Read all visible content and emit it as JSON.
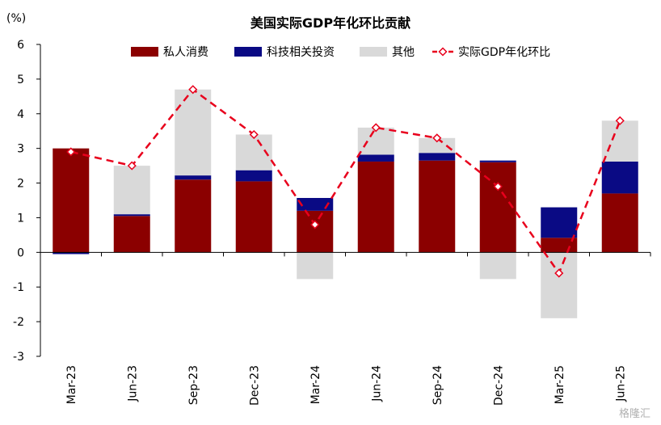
{
  "chart_data": {
    "type": "bar",
    "title": "美国实际GDP年化环比贡献",
    "ylabel": "(%)",
    "ylim": [
      -3,
      6
    ],
    "yticks": [
      -3,
      -2,
      -1,
      0,
      1,
      2,
      3,
      4,
      5,
      6
    ],
    "categories": [
      "Mar-23",
      "Jun-23",
      "Sep-23",
      "Dec-23",
      "Mar-24",
      "Jun-24",
      "Sep-24",
      "Dec-24",
      "Mar-25",
      "Jun-25"
    ],
    "series": [
      {
        "name": "私人消费",
        "kind": "bar",
        "color": "#8b0000",
        "values": [
          3.0,
          1.05,
          2.1,
          2.05,
          1.2,
          2.62,
          2.65,
          2.6,
          0.42,
          1.7
        ]
      },
      {
        "name": "科技相关投资",
        "kind": "bar",
        "color": "#0a0a84",
        "values": [
          -0.05,
          0.05,
          0.12,
          0.32,
          0.37,
          0.2,
          0.22,
          0.05,
          0.88,
          0.92
        ]
      },
      {
        "name": "其他",
        "kind": "bar",
        "color": "#d9d9d9",
        "values": [
          0.0,
          1.4,
          2.48,
          1.03,
          -0.77,
          0.78,
          0.43,
          -0.77,
          -1.9,
          1.18
        ]
      },
      {
        "name": "实际GDP年化环比",
        "kind": "line",
        "color": "#e8001c",
        "values": [
          2.9,
          2.5,
          4.7,
          3.4,
          0.8,
          3.6,
          3.3,
          1.9,
          -0.6,
          3.8
        ]
      }
    ],
    "legend": "top"
  },
  "watermark": "格隆汇"
}
